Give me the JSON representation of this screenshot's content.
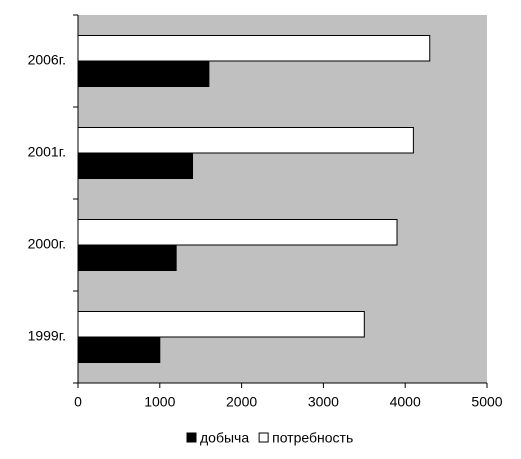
{
  "chart_data": {
    "type": "hbar",
    "categories": [
      "1999г.",
      "2000г.",
      "2001г.",
      "2006г."
    ],
    "series": [
      {
        "name": "добыча",
        "color": "#000000",
        "values": [
          1000,
          1200,
          1400,
          1600
        ]
      },
      {
        "name": "потребность",
        "color": "#ffffff",
        "values": [
          3500,
          3900,
          4100,
          4300
        ]
      }
    ],
    "xlim": [
      0,
      5000
    ],
    "xticks": [
      0,
      1000,
      2000,
      3000,
      4000,
      5000
    ],
    "plot_background": "#c0c0c0",
    "legend": "bottom"
  }
}
